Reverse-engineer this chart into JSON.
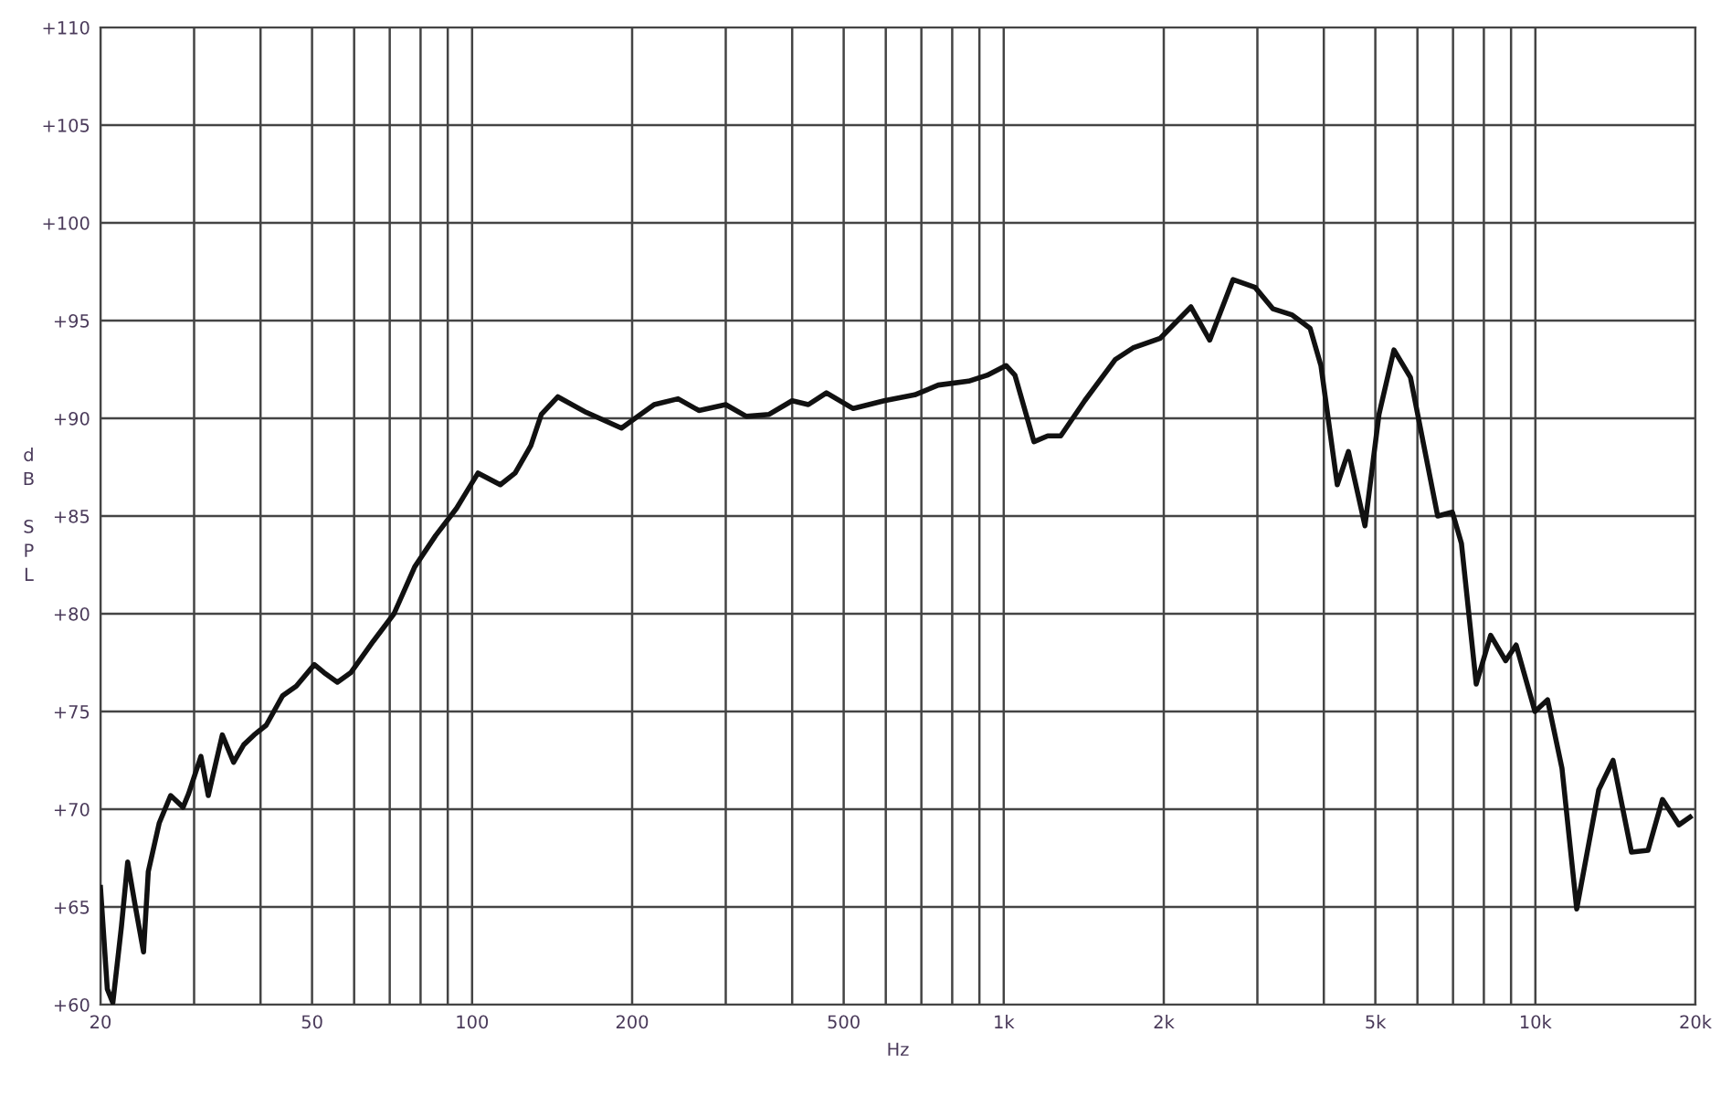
{
  "chart_data": {
    "type": "line",
    "xlabel": "Hz",
    "ylabel": "dB SPL",
    "log": "x",
    "grid": true,
    "marker": "none",
    "line_style": "solid",
    "xlim": [
      20,
      20000
    ],
    "ylim": [
      60,
      110
    ],
    "xticks": [
      20,
      {
        "value": 30,
        "label": null
      },
      {
        "value": 40,
        "label": null
      },
      50,
      {
        "value": 60,
        "label": null
      },
      {
        "value": 70,
        "label": null
      },
      {
        "value": 80,
        "label": null
      },
      {
        "value": 90,
        "label": null
      },
      100,
      200,
      {
        "value": 300,
        "label": null
      },
      {
        "value": 400,
        "label": null
      },
      500,
      {
        "value": 600,
        "label": null
      },
      {
        "value": 700,
        "label": null
      },
      {
        "value": 800,
        "label": null
      },
      {
        "value": 900,
        "label": null
      },
      {
        "value": 1000,
        "label": "1k"
      },
      {
        "value": 2000,
        "label": "2k"
      },
      {
        "value": 3000,
        "label": null
      },
      {
        "value": 4000,
        "label": null
      },
      {
        "value": 5000,
        "label": "5k"
      },
      {
        "value": 6000,
        "label": null
      },
      {
        "value": 7000,
        "label": null
      },
      {
        "value": 8000,
        "label": null
      },
      {
        "value": 9000,
        "label": null
      },
      {
        "value": 10000,
        "label": "10k"
      },
      {
        "value": 20000,
        "label": "20k"
      }
    ],
    "yticks": [
      {
        "value": 60,
        "label": "+60"
      },
      {
        "value": 65,
        "label": "+65"
      },
      {
        "value": 70,
        "label": "+70"
      },
      {
        "value": 75,
        "label": "+75"
      },
      {
        "value": 80,
        "label": "+80"
      },
      {
        "value": 85,
        "label": "+85"
      },
      {
        "value": 90,
        "label": "+90"
      },
      {
        "value": 95,
        "label": "+95"
      },
      {
        "value": 100,
        "label": "+100"
      },
      {
        "value": 105,
        "label": "+105"
      },
      {
        "value": 110,
        "label": "+110"
      }
    ],
    "series": [
      {
        "color": "#111111",
        "x": [
          20,
          20.6,
          21.1,
          21.9,
          22.5,
          23.2,
          24.1,
          24.6,
          25.8,
          27.1,
          28.6,
          29.3,
          30.9,
          31.9,
          33.9,
          35.6,
          37.2,
          38.9,
          41,
          44,
          46.7,
          50.5,
          52.6,
          55.8,
          59.2,
          65.2,
          71.3,
          78,
          85.4,
          93.5,
          102.6,
          113,
          120.5,
          129,
          135,
          145,
          164,
          191,
          220,
          244,
          267,
          300,
          328,
          362,
          400,
          429,
          464,
          521,
          596,
          680,
          753,
          859,
          930,
          1010,
          1050,
          1140,
          1210,
          1280,
          1420,
          1620,
          1750,
          1970,
          2250,
          2440,
          2700,
          2970,
          3210,
          3480,
          3770,
          3950,
          4240,
          4450,
          4780,
          5080,
          5420,
          5820,
          6550,
          6980,
          7260,
          7740,
          8240,
          8790,
          9200,
          9980,
          10540,
          11220,
          11960,
          13160,
          14000,
          15160,
          16290,
          17340,
          18620,
          19540
        ],
        "values": [
          66.0,
          60.8,
          60.1,
          64.0,
          67.3,
          65.2,
          62.7,
          66.8,
          69.3,
          70.7,
          70.1,
          70.8,
          72.7,
          70.7,
          73.8,
          72.4,
          73.3,
          73.8,
          74.3,
          75.8,
          76.3,
          77.4,
          77.0,
          76.5,
          77.0,
          78.6,
          80.0,
          82.4,
          84.0,
          85.4,
          87.2,
          86.6,
          87.2,
          88.6,
          90.2,
          91.1,
          90.3,
          89.5,
          90.7,
          91.0,
          90.4,
          90.7,
          90.1,
          90.2,
          90.9,
          90.7,
          91.3,
          90.5,
          90.9,
          91.2,
          91.7,
          91.9,
          92.2,
          92.7,
          92.2,
          88.8,
          89.1,
          89.1,
          90.9,
          93.0,
          93.6,
          94.1,
          95.7,
          94.0,
          97.1,
          96.7,
          95.6,
          95.3,
          94.6,
          92.7,
          86.6,
          88.3,
          84.5,
          90.2,
          93.5,
          92.1,
          85.0,
          85.2,
          83.6,
          76.4,
          78.9,
          77.6,
          78.4,
          75.0,
          75.6,
          72.1,
          64.9,
          71.0,
          72.5,
          67.8,
          67.9,
          70.5,
          69.2,
          69.6
        ]
      }
    ]
  }
}
